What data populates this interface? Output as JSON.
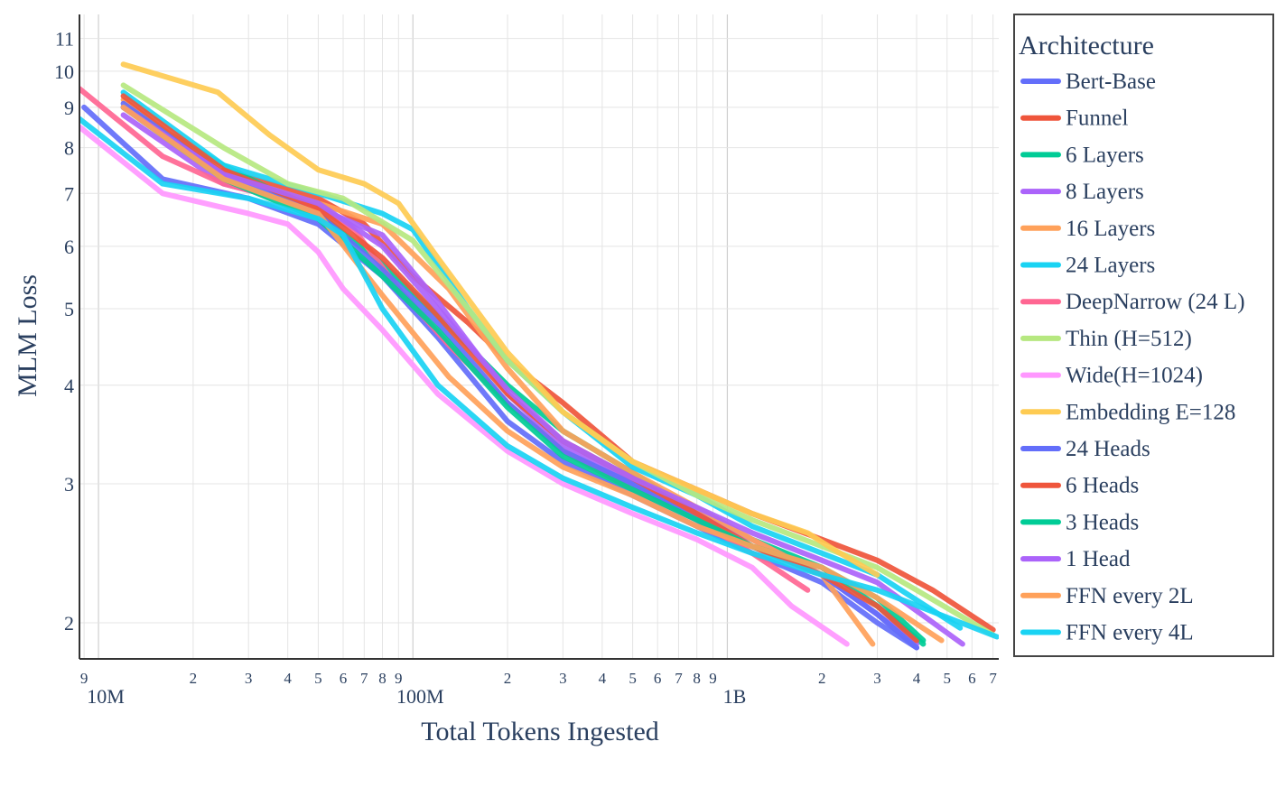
{
  "chart_data": {
    "type": "line",
    "xlabel": "Total Tokens Ingested",
    "ylabel": "MLM Loss",
    "x_scale": "log",
    "y_scale": "log",
    "xlim": [
      8700000,
      7300000000
    ],
    "ylim": [
      1.8,
      11.8
    ],
    "x_major_ticks": [
      {
        "value": 10000000,
        "label": "10M"
      },
      {
        "value": 100000000,
        "label": "100M"
      },
      {
        "value": 1000000000,
        "label": "1B"
      }
    ],
    "x_minor_ticks": [
      {
        "value": 9000000,
        "label": "9"
      },
      {
        "value": 20000000,
        "label": "2"
      },
      {
        "value": 30000000,
        "label": "3"
      },
      {
        "value": 40000000,
        "label": "4"
      },
      {
        "value": 50000000,
        "label": "5"
      },
      {
        "value": 60000000,
        "label": "6"
      },
      {
        "value": 70000000,
        "label": "7"
      },
      {
        "value": 80000000,
        "label": "8"
      },
      {
        "value": 90000000,
        "label": "9"
      },
      {
        "value": 200000000,
        "label": "2"
      },
      {
        "value": 300000000,
        "label": "3"
      },
      {
        "value": 400000000,
        "label": "4"
      },
      {
        "value": 500000000,
        "label": "5"
      },
      {
        "value": 600000000,
        "label": "6"
      },
      {
        "value": 700000000,
        "label": "7"
      },
      {
        "value": 800000000,
        "label": "8"
      },
      {
        "value": 900000000,
        "label": "9"
      },
      {
        "value": 2000000000,
        "label": "2"
      },
      {
        "value": 3000000000,
        "label": "3"
      },
      {
        "value": 4000000000,
        "label": "4"
      },
      {
        "value": 5000000000,
        "label": "5"
      },
      {
        "value": 6000000000,
        "label": "6"
      },
      {
        "value": 7000000000,
        "label": "7"
      }
    ],
    "y_ticks": [
      {
        "value": 2,
        "label": "2"
      },
      {
        "value": 3,
        "label": "3"
      },
      {
        "value": 4,
        "label": "4"
      },
      {
        "value": 5,
        "label": "5"
      },
      {
        "value": 6,
        "label": "6"
      },
      {
        "value": 7,
        "label": "7"
      },
      {
        "value": 8,
        "label": "8"
      },
      {
        "value": 9,
        "label": "9"
      },
      {
        "value": 10,
        "label": "10"
      },
      {
        "value": 11,
        "label": "11"
      }
    ],
    "grid": true,
    "legend_title": "Architecture",
    "legend_position": "right",
    "series": [
      {
        "name": "Bert-Base",
        "color": "#636efa",
        "x": [
          9000000,
          16000000,
          30000000,
          50000000,
          80000000,
          120000000,
          200000000,
          300000000,
          500000000,
          800000000,
          1200000000,
          2000000000,
          3000000000,
          4000000000
        ],
        "y": [
          9.0,
          7.3,
          6.9,
          6.4,
          5.5,
          4.6,
          3.6,
          3.2,
          2.9,
          2.65,
          2.45,
          2.25,
          2.0,
          1.86
        ]
      },
      {
        "name": "Funnel",
        "color": "#ef553b",
        "x": [
          25000000,
          50000000,
          70000000,
          100000000,
          150000000,
          200000000,
          300000000,
          500000000,
          800000000,
          1200000000,
          2000000000,
          3000000000,
          4500000000,
          7000000000
        ],
        "y": [
          7.5,
          6.9,
          6.4,
          5.5,
          4.8,
          4.3,
          3.8,
          3.2,
          2.95,
          2.75,
          2.55,
          2.4,
          2.2,
          1.96
        ]
      },
      {
        "name": "6 Layers",
        "color": "#00cc96",
        "x": [
          12000000,
          25000000,
          50000000,
          80000000,
          120000000,
          200000000,
          300000000,
          500000000,
          800000000,
          1200000000,
          2000000000,
          3000000000,
          4200000000
        ],
        "y": [
          9.0,
          7.6,
          6.6,
          5.7,
          4.9,
          4.0,
          3.5,
          3.1,
          2.75,
          2.55,
          2.35,
          2.1,
          1.88
        ]
      },
      {
        "name": "8 Layers",
        "color": "#ab63fa",
        "x": [
          12000000,
          25000000,
          50000000,
          80000000,
          120000000,
          200000000,
          300000000,
          500000000,
          800000000,
          1200000000,
          2000000000,
          3000000000,
          4000000000
        ],
        "y": [
          8.8,
          7.2,
          6.7,
          6.2,
          5.1,
          3.9,
          3.35,
          3.0,
          2.75,
          2.55,
          2.3,
          2.05,
          1.88
        ]
      },
      {
        "name": "16 Layers",
        "color": "#ffa15a",
        "x": [
          12000000,
          25000000,
          50000000,
          80000000,
          130000000,
          200000000,
          300000000,
          500000000,
          800000000,
          1200000000,
          2000000000,
          2900000000
        ],
        "y": [
          9.2,
          7.4,
          6.8,
          6.4,
          5.3,
          4.2,
          3.5,
          3.1,
          2.8,
          2.55,
          2.3,
          1.88
        ]
      },
      {
        "name": "24 Layers",
        "color": "#19d3f3",
        "x": [
          12000000,
          25000000,
          50000000,
          80000000,
          100000000,
          150000000,
          200000000,
          300000000,
          500000000,
          800000000,
          1200000000,
          2000000000,
          3000000000,
          5500000000
        ],
        "y": [
          9.4,
          7.6,
          7.0,
          6.6,
          6.3,
          5.0,
          4.3,
          3.7,
          3.15,
          2.9,
          2.65,
          2.45,
          2.3,
          1.97
        ]
      },
      {
        "name": "DeepNarrow (24 L)",
        "color": "#ff6692",
        "x": [
          8700000,
          16000000,
          25000000,
          50000000,
          65000000,
          90000000,
          130000000,
          200000000,
          300000000,
          500000000,
          800000000,
          1200000000,
          1800000000
        ],
        "y": [
          9.5,
          7.8,
          7.2,
          6.7,
          6.3,
          5.3,
          4.5,
          3.8,
          3.3,
          2.95,
          2.7,
          2.45,
          2.2
        ]
      },
      {
        "name": "Thin (H=512)",
        "color": "#b6e880",
        "x": [
          12000000,
          25000000,
          40000000,
          60000000,
          100000000,
          150000000,
          200000000,
          300000000,
          500000000,
          800000000,
          1200000000,
          2000000000,
          3000000000,
          4000000000,
          7000000000
        ],
        "y": [
          9.6,
          8.0,
          7.2,
          6.9,
          6.1,
          5.0,
          4.3,
          3.7,
          3.2,
          2.9,
          2.7,
          2.5,
          2.35,
          2.2,
          1.93
        ]
      },
      {
        "name": "Wide(H=1024)",
        "color": "#ff97ff",
        "x": [
          8700000,
          16000000,
          30000000,
          40000000,
          50000000,
          60000000,
          80000000,
          120000000,
          200000000,
          300000000,
          500000000,
          800000000,
          1200000000,
          1600000000,
          2400000000
        ],
        "y": [
          8.5,
          7.0,
          6.6,
          6.4,
          5.9,
          5.3,
          4.7,
          3.9,
          3.3,
          3.0,
          2.75,
          2.55,
          2.35,
          2.1,
          1.88
        ]
      },
      {
        "name": "Embedding E=128",
        "color": "#fecb52",
        "x": [
          12000000,
          24000000,
          35000000,
          50000000,
          70000000,
          90000000,
          120000000,
          200000000,
          300000000,
          500000000,
          800000000,
          1200000000,
          1800000000,
          2100000000,
          2500000000,
          3000000000
        ],
        "y": [
          10.2,
          9.4,
          8.3,
          7.5,
          7.2,
          6.8,
          5.8,
          4.4,
          3.7,
          3.2,
          2.95,
          2.75,
          2.6,
          2.5,
          2.4,
          2.3
        ]
      },
      {
        "name": "24 Heads",
        "color": "#636efa",
        "x": [
          12000000,
          25000000,
          50000000,
          80000000,
          120000000,
          200000000,
          300000000,
          500000000,
          800000000,
          1200000000,
          2000000000,
          3000000000,
          4000000000
        ],
        "y": [
          9.1,
          7.4,
          6.6,
          5.6,
          4.8,
          3.8,
          3.3,
          3.0,
          2.7,
          2.5,
          2.3,
          2.05,
          1.86
        ]
      },
      {
        "name": "6 Heads",
        "color": "#ef553b",
        "x": [
          12000000,
          25000000,
          50000000,
          80000000,
          120000000,
          200000000,
          300000000,
          500000000,
          800000000,
          1200000000,
          2000000000,
          3000000000,
          4000000000
        ],
        "y": [
          9.3,
          7.5,
          6.7,
          5.8,
          4.9,
          3.9,
          3.4,
          3.05,
          2.75,
          2.5,
          2.3,
          2.1,
          1.9
        ]
      },
      {
        "name": "3 Heads",
        "color": "#00cc96",
        "x": [
          12000000,
          25000000,
          50000000,
          80000000,
          120000000,
          200000000,
          300000000,
          500000000,
          800000000,
          1200000000,
          2000000000,
          3000000000,
          4200000000
        ],
        "y": [
          9.0,
          7.3,
          6.5,
          5.5,
          4.7,
          3.75,
          3.25,
          2.95,
          2.7,
          2.5,
          2.35,
          2.15,
          1.9
        ]
      },
      {
        "name": "1 Head",
        "color": "#ab63fa",
        "x": [
          12000000,
          25000000,
          50000000,
          80000000,
          120000000,
          200000000,
          300000000,
          500000000,
          800000000,
          1200000000,
          2000000000,
          3000000000,
          5600000000
        ],
        "y": [
          9.0,
          7.4,
          6.8,
          6.0,
          5.0,
          3.95,
          3.4,
          3.05,
          2.8,
          2.6,
          2.4,
          2.25,
          1.88
        ]
      },
      {
        "name": "FFN every 2L",
        "color": "#ffa15a",
        "x": [
          12000000,
          25000000,
          50000000,
          80000000,
          130000000,
          200000000,
          300000000,
          500000000,
          800000000,
          1200000000,
          2000000000,
          3000000000,
          4800000000
        ],
        "y": [
          9.0,
          7.3,
          6.6,
          5.2,
          4.1,
          3.5,
          3.15,
          2.9,
          2.65,
          2.5,
          2.35,
          2.15,
          1.9
        ]
      },
      {
        "name": "FFN every 4L",
        "color": "#19d3f3",
        "x": [
          8700000,
          16000000,
          30000000,
          50000000,
          60000000,
          80000000,
          120000000,
          200000000,
          300000000,
          500000000,
          800000000,
          1200000000,
          2000000000,
          3000000000,
          7200000000
        ],
        "y": [
          8.7,
          7.2,
          6.9,
          6.5,
          6.2,
          5.0,
          4.0,
          3.35,
          3.05,
          2.8,
          2.6,
          2.45,
          2.3,
          2.2,
          1.92
        ]
      }
    ]
  }
}
